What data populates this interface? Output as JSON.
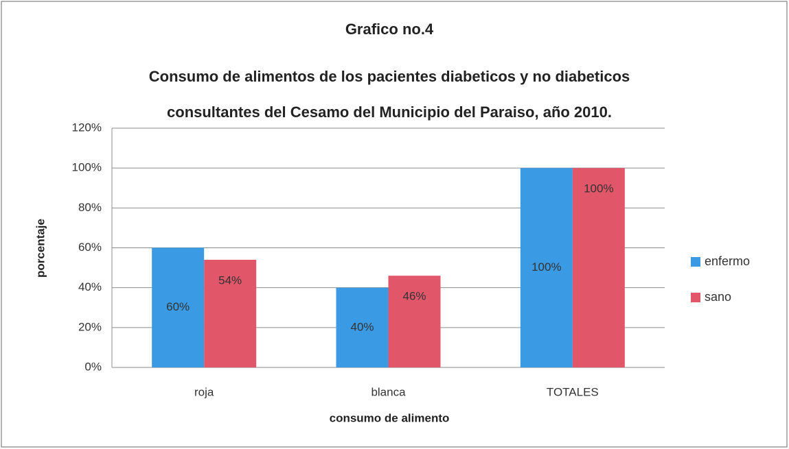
{
  "chart_data": {
    "type": "bar",
    "title": "Grafico no.4",
    "subtitle": [
      "Consumo de alimentos de los pacientes diabeticos y no diabeticos",
      "consultantes del Cesamo del Municipio del Paraiso, año 2010."
    ],
    "x_label": "consumo de alimento",
    "y_label": "porcentaje",
    "categories": [
      "roja",
      "blanca",
      "TOTALES"
    ],
    "series": [
      {
        "name": "enfermo",
        "color": "#3a9ae4",
        "values": [
          60,
          40,
          100
        ],
        "value_labels": [
          "60%",
          "40%",
          "100%"
        ]
      },
      {
        "name": "sano",
        "color": "#e2566a",
        "values": [
          54,
          46,
          100
        ],
        "value_labels": [
          "54%",
          "46%",
          "100%"
        ]
      }
    ],
    "ylim": [
      0,
      120
    ],
    "yticks": [
      {
        "value": 0,
        "label": "0%"
      },
      {
        "value": 20,
        "label": "20%"
      },
      {
        "value": 40,
        "label": "40%"
      },
      {
        "value": 60,
        "label": "60%"
      },
      {
        "value": 80,
        "label": "80%"
      },
      {
        "value": 100,
        "label": "100%"
      },
      {
        "value": 120,
        "label": "120%"
      }
    ],
    "grid": true,
    "legend": "right"
  }
}
